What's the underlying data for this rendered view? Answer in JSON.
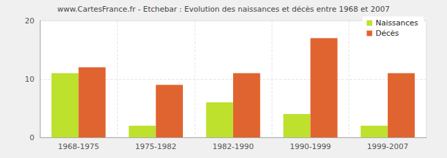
{
  "chart_data": {
    "type": "bar",
    "title": "www.CartesFrance.fr - Etchebar : Evolution des naissances et décès entre 1968 et 2007",
    "categories": [
      "1968-1975",
      "1975-1982",
      "1982-1990",
      "1990-1999",
      "1999-2007"
    ],
    "series": [
      {
        "name": "Naissances",
        "color": "#bde12d",
        "values": [
          11,
          2,
          6,
          4,
          2
        ]
      },
      {
        "name": "Décès",
        "color": "#e06430",
        "values": [
          12,
          9,
          11,
          17,
          11
        ]
      }
    ],
    "ylim": [
      0,
      20
    ],
    "yticks": [
      0,
      10,
      20
    ],
    "grid": true,
    "legend": "top-right"
  }
}
